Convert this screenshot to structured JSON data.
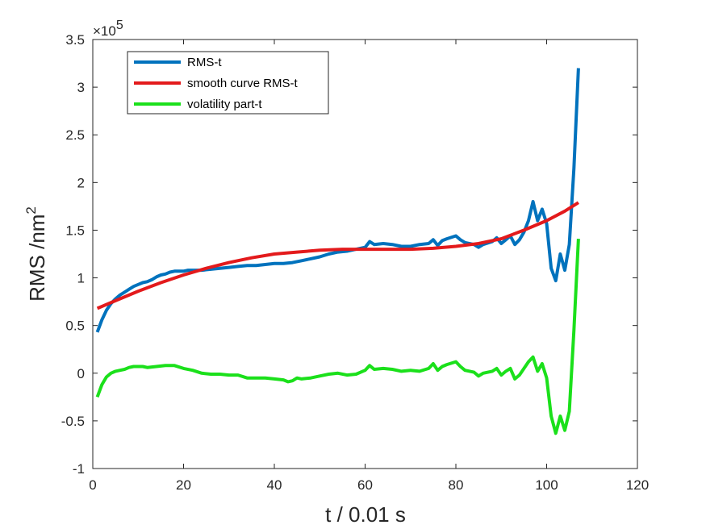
{
  "chart_data": {
    "type": "line",
    "title": "",
    "xlabel": "t / 0.01 s",
    "ylabel_main": "RMS /nm",
    "ylabel_sup": "2",
    "y_multiplier_base": "×10",
    "y_multiplier_exp": "5",
    "xlim": [
      0,
      120
    ],
    "ylim": [
      -1,
      3.5
    ],
    "x_ticks": [
      "0",
      "20",
      "40",
      "60",
      "80",
      "100",
      "120"
    ],
    "y_ticks": [
      "-1",
      "-0.5",
      "0",
      "0.5",
      "1",
      "1.5",
      "2",
      "2.5",
      "3",
      "3.5"
    ],
    "grid": false,
    "legend_position": "top-left",
    "series": [
      {
        "name": "RMS-t",
        "color": "#0072BD",
        "points": [
          [
            1,
            0.43
          ],
          [
            2,
            0.56
          ],
          [
            3,
            0.66
          ],
          [
            4,
            0.73
          ],
          [
            5,
            0.78
          ],
          [
            6,
            0.82
          ],
          [
            7,
            0.85
          ],
          [
            8,
            0.88
          ],
          [
            9,
            0.91
          ],
          [
            10,
            0.93
          ],
          [
            11,
            0.95
          ],
          [
            12,
            0.96
          ],
          [
            13,
            0.98
          ],
          [
            14,
            1.01
          ],
          [
            15,
            1.03
          ],
          [
            16,
            1.04
          ],
          [
            17,
            1.06
          ],
          [
            18,
            1.07
          ],
          [
            19,
            1.07
          ],
          [
            20,
            1.07
          ],
          [
            21,
            1.08
          ],
          [
            22,
            1.08
          ],
          [
            24,
            1.08
          ],
          [
            26,
            1.09
          ],
          [
            28,
            1.1
          ],
          [
            30,
            1.11
          ],
          [
            32,
            1.12
          ],
          [
            34,
            1.13
          ],
          [
            36,
            1.13
          ],
          [
            38,
            1.14
          ],
          [
            40,
            1.15
          ],
          [
            42,
            1.15
          ],
          [
            44,
            1.16
          ],
          [
            46,
            1.18
          ],
          [
            48,
            1.2
          ],
          [
            50,
            1.22
          ],
          [
            52,
            1.25
          ],
          [
            54,
            1.27
          ],
          [
            56,
            1.28
          ],
          [
            58,
            1.3
          ],
          [
            60,
            1.32
          ],
          [
            61,
            1.38
          ],
          [
            62,
            1.35
          ],
          [
            64,
            1.36
          ],
          [
            66,
            1.35
          ],
          [
            68,
            1.33
          ],
          [
            70,
            1.33
          ],
          [
            72,
            1.35
          ],
          [
            74,
            1.36
          ],
          [
            75,
            1.4
          ],
          [
            76,
            1.34
          ],
          [
            77,
            1.39
          ],
          [
            78,
            1.41
          ],
          [
            80,
            1.44
          ],
          [
            81,
            1.4
          ],
          [
            82,
            1.37
          ],
          [
            84,
            1.35
          ],
          [
            85,
            1.32
          ],
          [
            86,
            1.35
          ],
          [
            88,
            1.38
          ],
          [
            89,
            1.42
          ],
          [
            90,
            1.36
          ],
          [
            91,
            1.4
          ],
          [
            92,
            1.44
          ],
          [
            93,
            1.35
          ],
          [
            94,
            1.4
          ],
          [
            95,
            1.48
          ],
          [
            96,
            1.6
          ],
          [
            97,
            1.8
          ],
          [
            98,
            1.6
          ],
          [
            99,
            1.72
          ],
          [
            100,
            1.57
          ],
          [
            101,
            1.1
          ],
          [
            102,
            0.97
          ],
          [
            103,
            1.25
          ],
          [
            104,
            1.08
          ],
          [
            105,
            1.35
          ],
          [
            106,
            2.15
          ],
          [
            107,
            3.2
          ]
        ]
      },
      {
        "name": "smooth curve RMS-t",
        "color": "#E31A1C",
        "points": [
          [
            1,
            0.68
          ],
          [
            5,
            0.76
          ],
          [
            10,
            0.86
          ],
          [
            15,
            0.95
          ],
          [
            20,
            1.03
          ],
          [
            25,
            1.1
          ],
          [
            30,
            1.16
          ],
          [
            35,
            1.21
          ],
          [
            40,
            1.25
          ],
          [
            45,
            1.27
          ],
          [
            50,
            1.29
          ],
          [
            55,
            1.3
          ],
          [
            60,
            1.3
          ],
          [
            65,
            1.3
          ],
          [
            70,
            1.3
          ],
          [
            75,
            1.31
          ],
          [
            80,
            1.33
          ],
          [
            85,
            1.36
          ],
          [
            90,
            1.41
          ],
          [
            95,
            1.5
          ],
          [
            100,
            1.6
          ],
          [
            104,
            1.7
          ],
          [
            107,
            1.79
          ]
        ]
      },
      {
        "name": "volatility part-t",
        "color": "#1BE01B",
        "points": [
          [
            1,
            -0.25
          ],
          [
            2,
            -0.12
          ],
          [
            3,
            -0.04
          ],
          [
            4,
            0
          ],
          [
            5,
            0.02
          ],
          [
            6,
            0.03
          ],
          [
            7,
            0.04
          ],
          [
            8,
            0.06
          ],
          [
            9,
            0.07
          ],
          [
            10,
            0.07
          ],
          [
            11,
            0.07
          ],
          [
            12,
            0.06
          ],
          [
            14,
            0.07
          ],
          [
            16,
            0.08
          ],
          [
            18,
            0.08
          ],
          [
            20,
            0.05
          ],
          [
            22,
            0.03
          ],
          [
            24,
            0
          ],
          [
            26,
            -0.01
          ],
          [
            28,
            -0.01
          ],
          [
            30,
            -0.02
          ],
          [
            32,
            -0.02
          ],
          [
            34,
            -0.05
          ],
          [
            36,
            -0.05
          ],
          [
            38,
            -0.05
          ],
          [
            40,
            -0.06
          ],
          [
            42,
            -0.07
          ],
          [
            43,
            -0.09
          ],
          [
            44,
            -0.08
          ],
          [
            45,
            -0.05
          ],
          [
            46,
            -0.06
          ],
          [
            48,
            -0.05
          ],
          [
            50,
            -0.03
          ],
          [
            52,
            -0.01
          ],
          [
            54,
            0
          ],
          [
            56,
            -0.02
          ],
          [
            58,
            -0.01
          ],
          [
            60,
            0.03
          ],
          [
            61,
            0.08
          ],
          [
            62,
            0.04
          ],
          [
            64,
            0.05
          ],
          [
            66,
            0.04
          ],
          [
            68,
            0.02
          ],
          [
            70,
            0.03
          ],
          [
            72,
            0.02
          ],
          [
            74,
            0.05
          ],
          [
            75,
            0.1
          ],
          [
            76,
            0.03
          ],
          [
            77,
            0.07
          ],
          [
            78,
            0.09
          ],
          [
            80,
            0.12
          ],
          [
            81,
            0.07
          ],
          [
            82,
            0.03
          ],
          [
            84,
            0.01
          ],
          [
            85,
            -0.03
          ],
          [
            86,
            0
          ],
          [
            88,
            0.02
          ],
          [
            89,
            0.05
          ],
          [
            90,
            -0.02
          ],
          [
            91,
            0.02
          ],
          [
            92,
            0.05
          ],
          [
            93,
            -0.06
          ],
          [
            94,
            -0.02
          ],
          [
            95,
            0.05
          ],
          [
            96,
            0.12
          ],
          [
            97,
            0.17
          ],
          [
            98,
            0.02
          ],
          [
            99,
            0.1
          ],
          [
            100,
            -0.05
          ],
          [
            101,
            -0.45
          ],
          [
            102,
            -0.63
          ],
          [
            103,
            -0.45
          ],
          [
            104,
            -0.6
          ],
          [
            105,
            -0.4
          ],
          [
            106,
            0.45
          ],
          [
            107,
            1.41
          ]
        ]
      }
    ]
  }
}
